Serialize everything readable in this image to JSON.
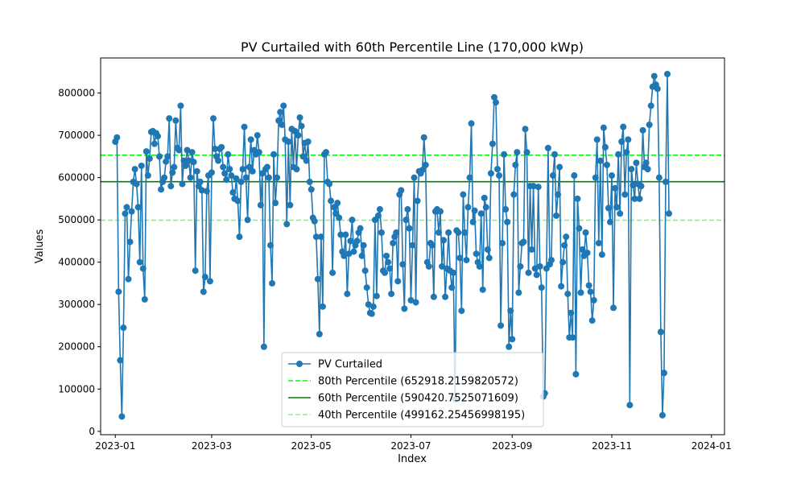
{
  "chart_data": {
    "type": "line",
    "title": "PV Curtailed with 60th Percentile Line (170,000 kWp)",
    "xlabel": "Index",
    "ylabel": "Values",
    "xlim": [
      "2022-12-23",
      "2024-01-09"
    ],
    "ylim": [
      -8000,
      883000
    ],
    "xticks": [
      {
        "date": "2023-01-01",
        "label": "2023-01"
      },
      {
        "date": "2023-03-01",
        "label": "2023-03"
      },
      {
        "date": "2023-05-01",
        "label": "2023-05"
      },
      {
        "date": "2023-07-01",
        "label": "2023-07"
      },
      {
        "date": "2023-09-01",
        "label": "2023-09"
      },
      {
        "date": "2023-11-01",
        "label": "2023-11"
      },
      {
        "date": "2024-01-01",
        "label": "2024-01"
      }
    ],
    "yticks": [
      {
        "value": 0,
        "label": "0"
      },
      {
        "value": 100000,
        "label": "100000"
      },
      {
        "value": 200000,
        "label": "200000"
      },
      {
        "value": 300000,
        "label": "300000"
      },
      {
        "value": 400000,
        "label": "400000"
      },
      {
        "value": 500000,
        "label": "500000"
      },
      {
        "value": 600000,
        "label": "600000"
      },
      {
        "value": 700000,
        "label": "700000"
      },
      {
        "value": 800000,
        "label": "800000"
      }
    ],
    "grid": false,
    "legend": {
      "placement": "lower-center",
      "entries": [
        "PV Curtailed",
        "80th Percentile (652918.2159820572)",
        "60th Percentile (590420.7525071609)",
        "40th Percentile (499162.25456998195)"
      ]
    },
    "series": [
      {
        "name": "PV Curtailed",
        "color": "#1f77b4",
        "marker": "circle",
        "x_start": "2023-01-01",
        "x_step": "1 day",
        "values": [
          685000,
          695000,
          330000,
          168000,
          35000,
          245000,
          515000,
          530000,
          360000,
          448000,
          520000,
          590000,
          620000,
          585000,
          530000,
          400000,
          628000,
          385000,
          312000,
          662000,
          605000,
          645000,
          708000,
          710000,
          680000,
          705000,
          698000,
          650000,
          572000,
          590000,
          600000,
          638000,
          650000,
          740000,
          580000,
          612000,
          625000,
          735000,
          670000,
          665000,
          770000,
          585000,
          640000,
          628000,
          665000,
          640000,
          600000,
          660000,
          637000,
          380000,
          615000,
          580000,
          590000,
          570000,
          330000,
          365000,
          568000,
          605000,
          355000,
          612000,
          740000,
          668000,
          650000,
          640000,
          668000,
          672000,
          625000,
          610000,
          595000,
          655000,
          620000,
          605000,
          565000,
          550000,
          598000,
          545000,
          460000,
          590000,
          620000,
          720000,
          600000,
          500000,
          625000,
          690000,
          615000,
          665000,
          655000,
          700000,
          660000,
          535000,
          610000,
          200000,
          620000,
          625000,
          600000,
          440000,
          350000,
          655000,
          540000,
          600000,
          735000,
          755000,
          725000,
          770000,
          690000,
          490000,
          685000,
          535000,
          715000,
          625000,
          710000,
          620000,
          700000,
          742000,
          722000,
          650000,
          682000,
          640000,
          685000,
          590000,
          572000,
          505000,
          497000,
          460000,
          360000,
          230000,
          460000,
          295000,
          655000,
          660000,
          590000,
          585000,
          545000,
          375000,
          530000,
          515000,
          540000,
          505000,
          465000,
          425000,
          415000,
          465000,
          325000,
          420000,
          450000,
          500000,
          425000,
          440000,
          450000,
          470000,
          480000,
          415000,
          440000,
          380000,
          340000,
          300000,
          280000,
          278000,
          295000,
          500000,
          320000,
          510000,
          525000,
          470000,
          380000,
          375000,
          415000,
          400000,
          385000,
          325000,
          445000,
          460000,
          470000,
          355000,
          560000,
          570000,
          395000,
          290000,
          500000,
          525000,
          480000,
          310000,
          440000,
          600000,
          305000,
          545000,
          615000,
          610000,
          618000,
          695000,
          630000,
          400000,
          390000,
          445000,
          440000,
          318000,
          520000,
          525000,
          470000,
          520000,
          390000,
          452000,
          318000,
          385000,
          470000,
          380000,
          340000,
          375000,
          75000,
          475000,
          470000,
          410000,
          285000,
          560000,
          470000,
          405000,
          530000,
          600000,
          728000,
          495000,
          522000,
          420000,
          400000,
          390000,
          515000,
          335000,
          552000,
          530000,
          430000,
          410000,
          610000,
          680000,
          790000,
          778000,
          620000,
          605000,
          250000,
          445000,
          655000,
          525000,
          495000,
          200000,
          285000,
          218000,
          560000,
          630000,
          660000,
          328000,
          390000,
          445000,
          448000,
          715000,
          660000,
          375000,
          580000,
          430000,
          580000,
          385000,
          370000,
          578000,
          390000,
          340000,
          82000,
          90000,
          385000,
          670000,
          395000,
          405000,
          605000,
          655000,
          510000,
          560000,
          625000,
          343000,
          400000,
          440000,
          460000,
          325000,
          222000,
          280000,
          222000,
          605000,
          135000,
          550000,
          480000,
          328000,
          430000,
          415000,
          470000,
          422000,
          345000,
          330000,
          262000,
          310000,
          600000,
          690000,
          445000,
          640000,
          418000,
          718000,
          672000,
          630000,
          528000,
          495000,
          605000,
          292000,
          575000,
          530000,
          655000,
          515000,
          685000,
          720000,
          560000,
          660000,
          690000,
          62000,
          620000,
          582000,
          550000,
          635000,
          585000,
          550000,
          580000,
          712000,
          625000,
          635000,
          620000,
          725000,
          770000,
          815000,
          840000,
          820000,
          810000,
          600000,
          235000,
          38000,
          138000,
          590000,
          845000,
          515000
        ]
      }
    ],
    "reference_lines": [
      {
        "label": "80th Percentile",
        "value": 652918.2159820572,
        "color": "#00ff00",
        "style": "dashed"
      },
      {
        "label": "60th Percentile",
        "value": 590420.7525071609,
        "color": "#008000",
        "style": "solid"
      },
      {
        "label": "40th Percentile",
        "value": 499162.25456998195,
        "color": "#90ee90",
        "style": "dashed"
      }
    ]
  }
}
